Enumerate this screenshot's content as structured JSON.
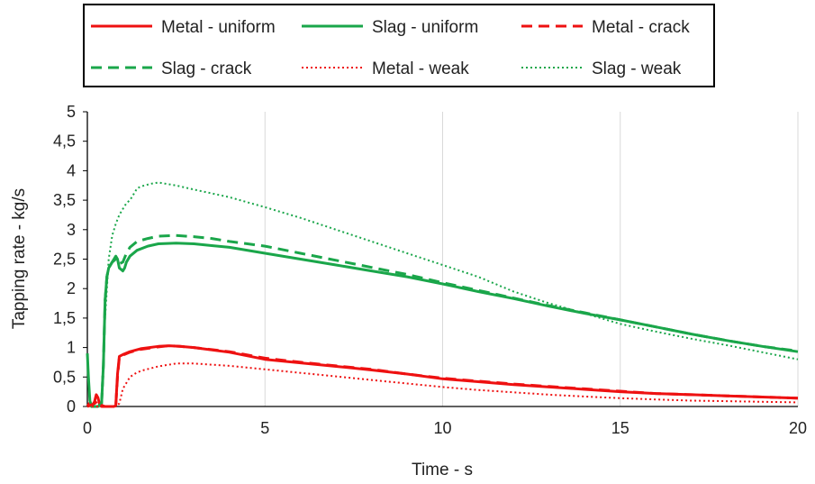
{
  "chart_data": {
    "type": "line",
    "title": "",
    "xlabel": "Time - s",
    "ylabel": "Tapping rate - kg/s",
    "xlim": [
      0,
      20
    ],
    "ylim": [
      0,
      5
    ],
    "x_ticks": [
      "0",
      "5",
      "10",
      "15",
      "20"
    ],
    "y_ticks": [
      "0",
      "0,5",
      "1",
      "1,5",
      "2",
      "2,5",
      "3",
      "3,5",
      "4",
      "4,5",
      "5"
    ],
    "grid": "vertical",
    "legend_placement": "top, boxed, 3 columns",
    "colors": {
      "metal": "#ee1111",
      "slag": "#1aa64a"
    },
    "series": [
      {
        "name": "Metal - uniform",
        "color": "#ee1111",
        "dash": "solid",
        "x": [
          0,
          0.05,
          0.12,
          0.2,
          0.25,
          0.3,
          0.35,
          0.4,
          0.5,
          0.6,
          0.7,
          0.75,
          0.8,
          0.85,
          0.9,
          1,
          1.2,
          1.5,
          2,
          2.3,
          2.6,
          3,
          4,
          5,
          6,
          7,
          8,
          9,
          10,
          11,
          12,
          13,
          14,
          15,
          16,
          17,
          18,
          19,
          20
        ],
        "y": [
          0,
          0.05,
          0,
          0.08,
          0.2,
          0.15,
          0.02,
          0,
          0,
          0,
          0,
          0,
          0.02,
          0.55,
          0.85,
          0.88,
          0.93,
          0.98,
          1.02,
          1.03,
          1.02,
          1.0,
          0.92,
          0.8,
          0.74,
          0.68,
          0.62,
          0.55,
          0.47,
          0.42,
          0.37,
          0.33,
          0.29,
          0.25,
          0.22,
          0.2,
          0.18,
          0.16,
          0.14
        ]
      },
      {
        "name": "Slag - uniform",
        "color": "#1aa64a",
        "dash": "solid",
        "x": [
          0,
          0.03,
          0.07,
          0.12,
          0.2,
          0.3,
          0.4,
          0.45,
          0.5,
          0.55,
          0.6,
          0.7,
          0.8,
          0.85,
          0.9,
          1.0,
          1.05,
          1.1,
          1.2,
          1.4,
          1.7,
          2,
          2.5,
          3,
          3.5,
          4,
          5,
          6,
          7,
          8,
          9,
          10,
          11,
          12,
          13,
          14,
          15,
          16,
          17,
          18,
          19,
          20
        ],
        "y": [
          0.9,
          0.5,
          0.1,
          0,
          0,
          0,
          0.05,
          0.7,
          1.8,
          2.2,
          2.35,
          2.45,
          2.55,
          2.5,
          2.35,
          2.3,
          2.35,
          2.45,
          2.55,
          2.65,
          2.72,
          2.76,
          2.77,
          2.76,
          2.73,
          2.7,
          2.6,
          2.5,
          2.4,
          2.3,
          2.2,
          2.08,
          1.95,
          1.83,
          1.7,
          1.58,
          1.47,
          1.35,
          1.23,
          1.12,
          1.02,
          0.93
        ]
      },
      {
        "name": "Metal - crack",
        "color": "#ee1111",
        "dash": "dashed",
        "x": [
          0,
          0.2,
          0.3,
          0.4,
          0.5,
          0.7,
          0.8,
          0.85,
          0.9,
          1,
          1.2,
          1.5,
          2,
          2.3,
          2.6,
          3,
          4,
          5,
          6,
          7,
          8,
          9,
          10,
          11,
          12,
          13,
          14,
          15,
          16,
          17,
          18,
          19,
          20
        ],
        "y": [
          0,
          0.05,
          0.1,
          0.02,
          0,
          0,
          0.02,
          0.5,
          0.83,
          0.87,
          0.92,
          0.97,
          1.01,
          1.03,
          1.02,
          1.0,
          0.93,
          0.82,
          0.75,
          0.69,
          0.63,
          0.55,
          0.48,
          0.43,
          0.38,
          0.34,
          0.3,
          0.26,
          0.22,
          0.2,
          0.18,
          0.16,
          0.14
        ]
      },
      {
        "name": "Slag - crack",
        "color": "#1aa64a",
        "dash": "dashed",
        "x": [
          0.4,
          0.45,
          0.5,
          0.55,
          0.6,
          0.7,
          0.8,
          0.9,
          1.0,
          1.1,
          1.2,
          1.4,
          1.7,
          2,
          2.5,
          3,
          3.5,
          4,
          5,
          6,
          7,
          8,
          9,
          10,
          11,
          12,
          13,
          14,
          15,
          16,
          17,
          18,
          19,
          20
        ],
        "y": [
          0.05,
          0.7,
          1.8,
          2.2,
          2.35,
          2.45,
          2.5,
          2.42,
          2.45,
          2.6,
          2.7,
          2.8,
          2.85,
          2.89,
          2.9,
          2.88,
          2.85,
          2.8,
          2.72,
          2.6,
          2.48,
          2.36,
          2.24,
          2.1,
          1.97,
          1.84,
          1.71,
          1.59,
          1.47,
          1.35,
          1.23,
          1.12,
          1.02,
          0.94
        ]
      },
      {
        "name": "Metal - weak",
        "color": "#ee1111",
        "dash": "dotted",
        "x": [
          0,
          0.8,
          0.9,
          1.0,
          1.2,
          1.4,
          1.6,
          1.8,
          2,
          2.5,
          3,
          4,
          5,
          6,
          7,
          8,
          9,
          10,
          11,
          12,
          13,
          14,
          15,
          16,
          17,
          18,
          19,
          20
        ],
        "y": [
          0,
          0,
          0.05,
          0.3,
          0.5,
          0.58,
          0.62,
          0.65,
          0.68,
          0.73,
          0.73,
          0.69,
          0.63,
          0.57,
          0.51,
          0.45,
          0.39,
          0.33,
          0.28,
          0.24,
          0.2,
          0.17,
          0.14,
          0.12,
          0.1,
          0.09,
          0.08,
          0.07
        ]
      },
      {
        "name": "Slag - weak",
        "color": "#1aa64a",
        "dash": "dotted",
        "x": [
          0.4,
          0.5,
          0.6,
          0.7,
          0.8,
          0.9,
          1.0,
          1.1,
          1.2,
          1.3,
          1.4,
          1.5,
          1.6,
          1.8,
          2,
          2.5,
          3,
          4,
          5,
          6,
          7,
          8,
          9,
          10,
          11,
          12,
          13,
          14,
          15,
          16,
          17,
          18,
          19,
          20
        ],
        "y": [
          0.1,
          1.5,
          2.5,
          2.9,
          3.1,
          3.25,
          3.35,
          3.45,
          3.5,
          3.6,
          3.7,
          3.73,
          3.75,
          3.78,
          3.8,
          3.75,
          3.68,
          3.55,
          3.38,
          3.2,
          3.0,
          2.8,
          2.6,
          2.4,
          2.2,
          1.95,
          1.75,
          1.58,
          1.4,
          1.27,
          1.15,
          1.04,
          0.92,
          0.8
        ]
      }
    ]
  }
}
